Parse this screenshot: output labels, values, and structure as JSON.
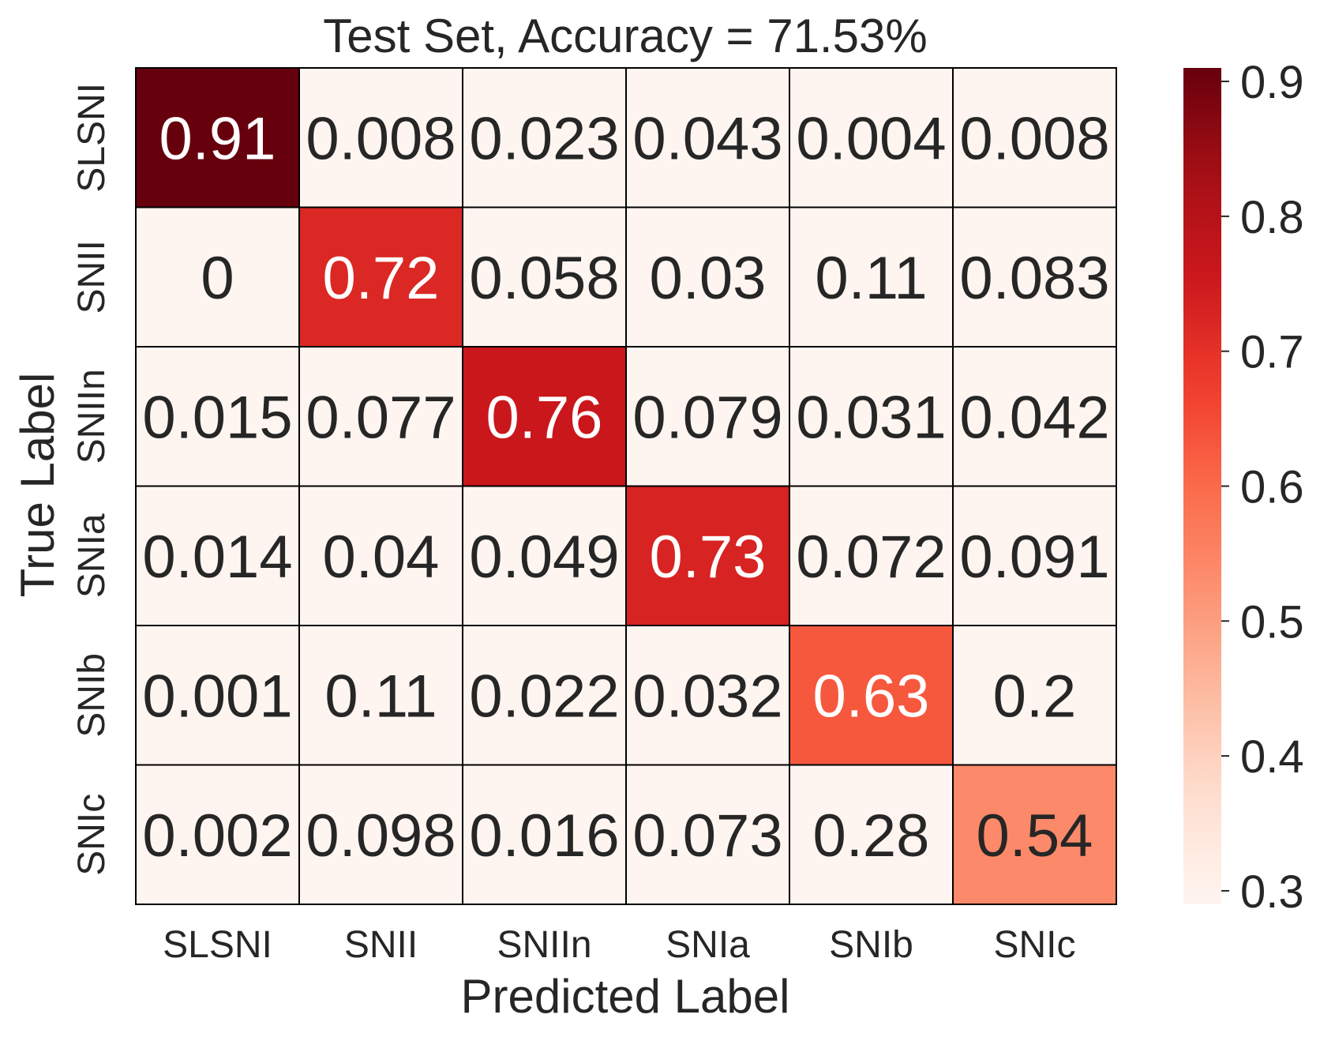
{
  "chart_data": {
    "type": "heatmap",
    "title": "Test Set, Accuracy = 71.53%",
    "xlabel": "Predicted Label",
    "ylabel": "True Label",
    "x_categories": [
      "SLSNI",
      "SNII",
      "SNIIn",
      "SNIa",
      "SNIb",
      "SNIc"
    ],
    "y_categories": [
      "SLSNI",
      "SNII",
      "SNIIn",
      "SNIa",
      "SNIb",
      "SNIc"
    ],
    "values": [
      [
        0.91,
        0.008,
        0.023,
        0.043,
        0.004,
        0.008
      ],
      [
        0,
        0.72,
        0.058,
        0.03,
        0.11,
        0.083
      ],
      [
        0.015,
        0.077,
        0.76,
        0.079,
        0.031,
        0.042
      ],
      [
        0.014,
        0.04,
        0.049,
        0.73,
        0.072,
        0.091
      ],
      [
        0.001,
        0.11,
        0.022,
        0.032,
        0.63,
        0.2
      ],
      [
        0.002,
        0.098,
        0.016,
        0.073,
        0.28,
        0.54
      ]
    ],
    "labels": [
      [
        "0.91",
        "0.008",
        "0.023",
        "0.043",
        "0.004",
        "0.008"
      ],
      [
        "0",
        "0.72",
        "0.058",
        "0.03",
        "0.11",
        "0.083"
      ],
      [
        "0.015",
        "0.077",
        "0.76",
        "0.079",
        "0.031",
        "0.042"
      ],
      [
        "0.014",
        "0.04",
        "0.049",
        "0.73",
        "0.072",
        "0.091"
      ],
      [
        "0.001",
        "0.11",
        "0.022",
        "0.032",
        "0.63",
        "0.2"
      ],
      [
        "0.002",
        "0.098",
        "0.016",
        "0.073",
        "0.28",
        "0.54"
      ]
    ],
    "colormap": "Reds",
    "vmin": 0.29,
    "vmax": 0.91,
    "colorbar": {
      "ticks": [
        0.3,
        0.4,
        0.5,
        0.6,
        0.7,
        0.8,
        0.9
      ],
      "tick_labels": [
        "0.3",
        "0.4",
        "0.5",
        "0.6",
        "0.7",
        "0.8",
        "0.9"
      ]
    },
    "grid": true,
    "colors": {
      "low": "#fff5f0",
      "high": "#67000d",
      "cell_border": "#000000",
      "dark_text": "#262626",
      "light_text": "#ffffff"
    }
  }
}
